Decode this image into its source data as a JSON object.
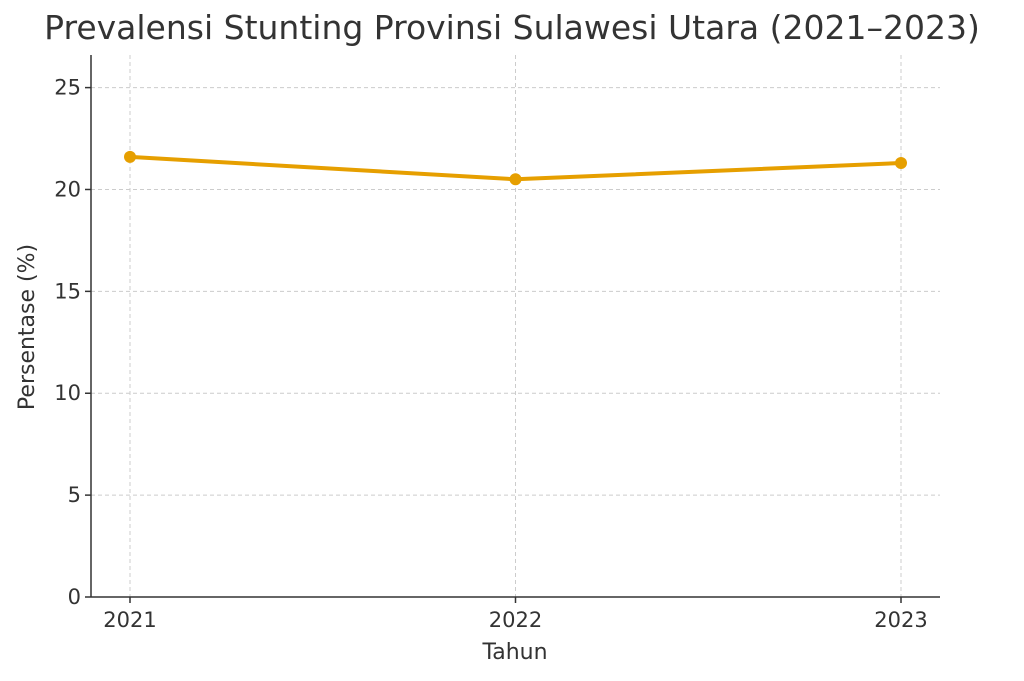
{
  "chart_data": {
    "type": "line",
    "title": "Prevalensi Stunting Provinsi Sulawesi Utara (2021–2023)",
    "xlabel": "Tahun",
    "ylabel": "Persentase (%)",
    "categories": [
      "2021",
      "2022",
      "2023"
    ],
    "series": [
      {
        "values": [
          21.6,
          20.5,
          21.3
        ]
      }
    ],
    "ylim": [
      0,
      26.6
    ],
    "yticks": [
      0,
      5,
      10,
      15,
      20,
      25
    ],
    "grid": true,
    "line_color": "#E69F00",
    "grid_color": "#cccccc",
    "axis_color": "#333333"
  }
}
